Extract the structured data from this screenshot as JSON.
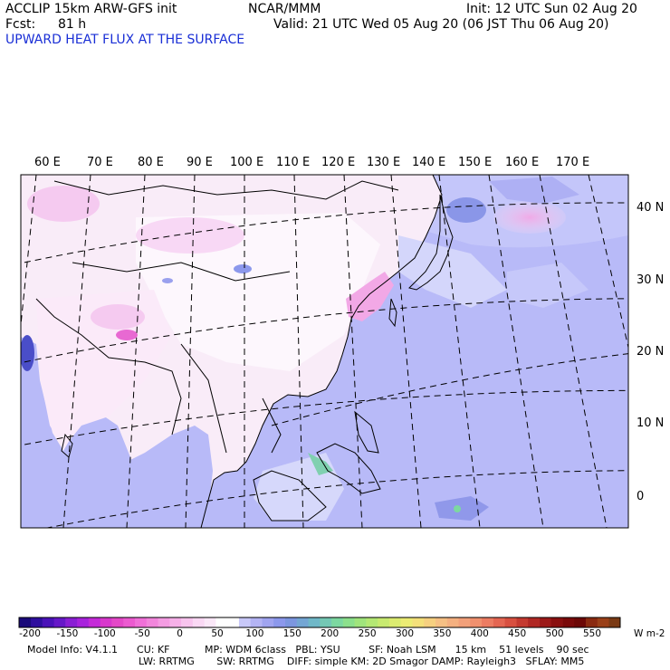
{
  "header": {
    "model_line": "ACCLIP 15km ARW-GFS init",
    "org": "NCAR/MMM",
    "init": "Init: 12 UTC Sun 02 Aug 20",
    "fcst_label": "Fcst:",
    "fcst_value": "81 h",
    "valid": "Valid: 21 UTC Wed 05 Aug 20 (06 JST Thu 06 Aug 20)",
    "field_title": "UPWARD HEAT FLUX AT THE SURFACE"
  },
  "map": {
    "lon_labels": [
      "60 E",
      "70 E",
      "80 E",
      "90 E",
      "100 E",
      "110 E",
      "120 E",
      "130 E",
      "140 E",
      "150 E",
      "160 E",
      "170 E"
    ],
    "lat_labels": [
      "40 N",
      "30 N",
      "20 N",
      "10 N",
      "0"
    ]
  },
  "colorbar": {
    "ticks": [
      "-200",
      "-150",
      "-100",
      "-50",
      "0",
      "50",
      "100",
      "150",
      "200",
      "250",
      "300",
      "350",
      "400",
      "450",
      "500",
      "550"
    ],
    "unit": "W m-2",
    "colors": [
      "#1a0a7a",
      "#2e0e9e",
      "#4a12b8",
      "#6618c8",
      "#8a1ed4",
      "#a822dc",
      "#c42ad8",
      "#d838cc",
      "#e448c8",
      "#ec5ad0",
      "#f070d8",
      "#f286dc",
      "#f49ce2",
      "#f6b0e8",
      "#f8c4ee",
      "#fad8f4",
      "#fbe8f8",
      "#ffffff",
      "#ffffff",
      "#c8c8f8",
      "#b4b4f4",
      "#a0a4f0",
      "#8c98ec",
      "#7c96e0",
      "#74a6d4",
      "#70b8c8",
      "#74c8b4",
      "#7cd8a0",
      "#8ce08c",
      "#a0e47c",
      "#b4e874",
      "#c8ea70",
      "#dcec70",
      "#ecec74",
      "#f4e07a",
      "#f6d080",
      "#f6c084",
      "#f4b080",
      "#f2a07a",
      "#f0906e",
      "#ec7c62",
      "#e46652",
      "#d85040",
      "#c43a30",
      "#b02824",
      "#9c1a18",
      "#8a1010",
      "#7a0a0a",
      "#6c0806",
      "#8a2a10",
      "#9a4018",
      "#7a3a14"
    ]
  },
  "footer": {
    "line1": "Model Info: V4.1.1      CU: KF           MP: WDM 6class   PBL: YSU         SF: Noah LSM      15 km    51 levels    90 sec",
    "line2": "LW: RRTMG       SW: RRTMG    DIFF: simple KM: 2D Smagor DAMP: Rayleigh3   SFLAY: MM5"
  }
}
